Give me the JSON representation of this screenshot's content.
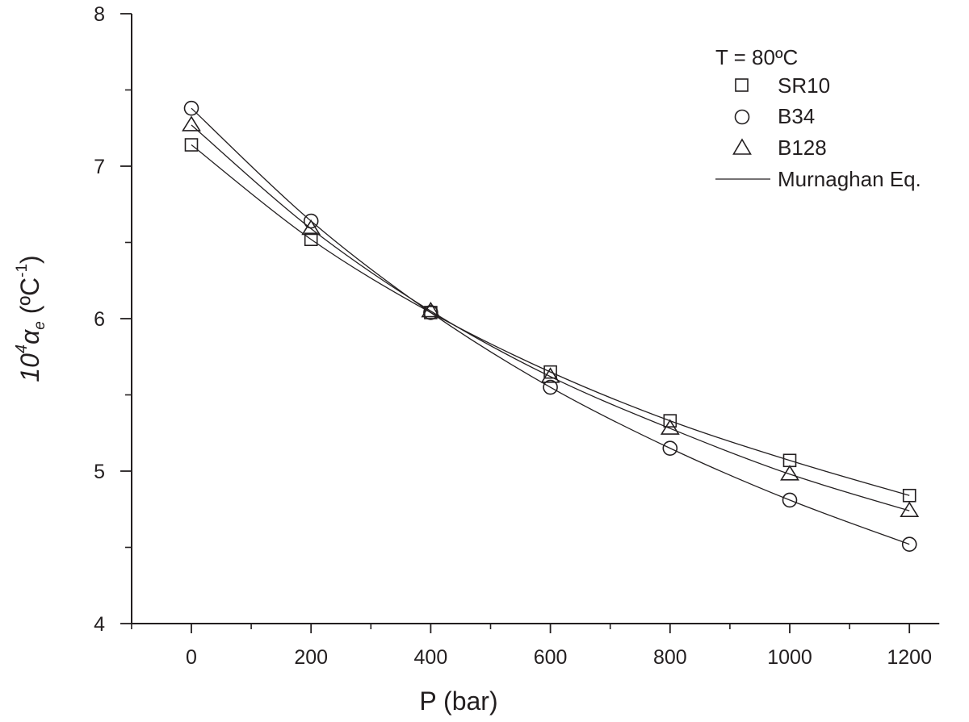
{
  "chart_data": {
    "type": "scatter",
    "xlabel": "P (bar)",
    "ylabel": {
      "base": "10",
      "exponent": "4",
      "symbol": "α",
      "subscript": "e",
      "unit_open": " (ºC",
      "unit_exponent": "-1",
      "unit_close": ")"
    },
    "xlim": [
      -100,
      1250
    ],
    "ylim": [
      4,
      8
    ],
    "x_major_ticks": [
      0,
      200,
      400,
      600,
      800,
      1000,
      1200
    ],
    "x_minor_ticks": [
      -100,
      100,
      300,
      500,
      700,
      900,
      1100
    ],
    "y_major_ticks": [
      4,
      5,
      6,
      7,
      8
    ],
    "y_minor_ticks": [
      4.5,
      5.5,
      6.5,
      7.5
    ],
    "grid": false,
    "legend": {
      "placement": "top-right",
      "header": "T = 80ºC",
      "entries": [
        {
          "label": "SR10",
          "marker": "square"
        },
        {
          "label": "B34",
          "marker": "circle"
        },
        {
          "label": "B128",
          "marker": "triangle"
        },
        {
          "label": "Murnaghan Eq.",
          "marker": "line"
        }
      ]
    },
    "x": [
      0,
      200,
      400,
      600,
      800,
      1000,
      1200
    ],
    "series": [
      {
        "name": "SR10",
        "marker": "square",
        "values": [
          7.14,
          6.52,
          6.04,
          5.65,
          5.33,
          5.07,
          4.84
        ]
      },
      {
        "name": "B34",
        "marker": "circle",
        "values": [
          7.38,
          6.64,
          6.04,
          5.55,
          5.15,
          4.81,
          4.52
        ]
      },
      {
        "name": "B128",
        "marker": "triangle",
        "values": [
          7.27,
          6.59,
          6.05,
          5.62,
          5.28,
          4.98,
          4.74
        ]
      }
    ],
    "fit_name": "Murnaghan Eq.",
    "colors": {
      "ink": "#231f20",
      "background": "#ffffff"
    }
  }
}
